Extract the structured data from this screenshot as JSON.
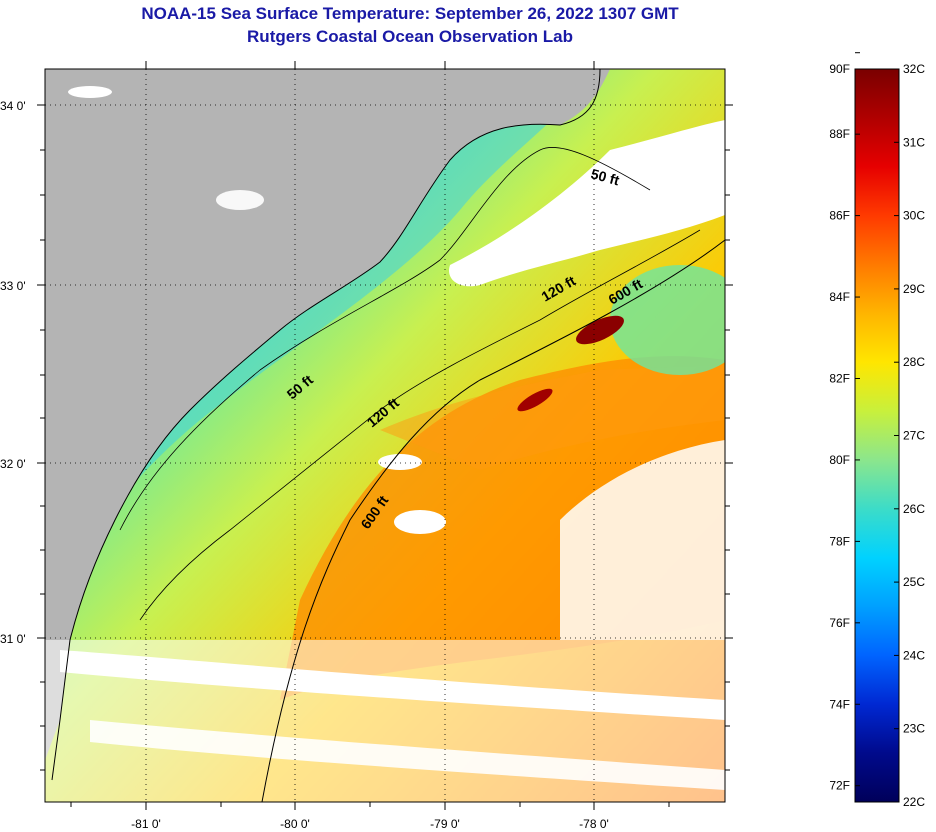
{
  "title": {
    "line1": "NOAA-15 Sea Surface Temperature:  September 26, 2022 1307 GMT",
    "line2": "Rutgers Coastal Ocean Observation Lab"
  },
  "map": {
    "lat_labels": [
      "34 0'",
      "33 0'",
      "32 0'",
      "31 0'"
    ],
    "lon_labels": [
      "-81 0'",
      "-80 0'",
      "-79 0'",
      "-78 0'"
    ],
    "contour_labels": [
      "50 ft",
      "120 ft",
      "600 ft",
      "50 ft",
      "120 ft",
      "600 ft"
    ],
    "colors": {
      "land": "#b4b4b4",
      "cloud": "#ffffff"
    }
  },
  "colorbar": {
    "fahrenheit": [
      "90F",
      "88F",
      "86F",
      "84F",
      "82F",
      "80F",
      "78F",
      "76F",
      "74F",
      "72F"
    ],
    "celsius": [
      "32C",
      "31C",
      "30C",
      "29C",
      "28C",
      "27C",
      "26C",
      "25C",
      "24C",
      "23C",
      "22C"
    ],
    "stops": [
      "#7a0000",
      "#b00000",
      "#e60000",
      "#ff3a00",
      "#ff7a00",
      "#ffb400",
      "#ffe600",
      "#c8f03c",
      "#8ce68c",
      "#3cdcc8",
      "#00d2ff",
      "#00a0ff",
      "#0064ff",
      "#0028d2",
      "#000a8c",
      "#00005a"
    ]
  }
}
